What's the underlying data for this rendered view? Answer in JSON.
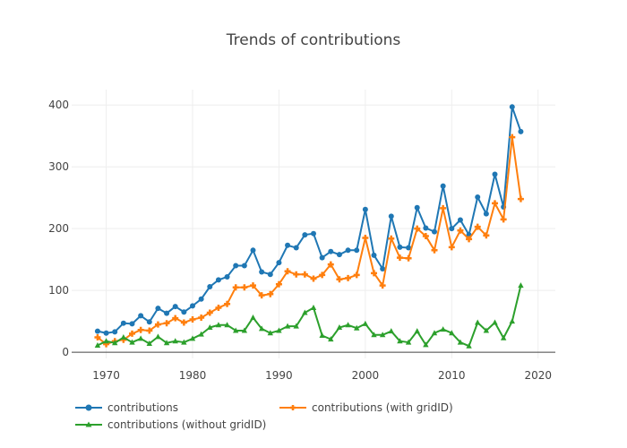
{
  "chart_data": {
    "type": "line",
    "title": "Trends of contributions",
    "xlabel": "",
    "ylabel": "",
    "xlim": [
      1966,
      2022
    ],
    "ylim": [
      -10,
      425
    ],
    "x_ticks": [
      1970,
      1980,
      1990,
      2000,
      2010,
      2020
    ],
    "y_ticks": [
      0,
      100,
      200,
      300,
      400
    ],
    "grid": true,
    "legend_position": "bottom-left",
    "x": [
      1969,
      1970,
      1971,
      1972,
      1973,
      1974,
      1975,
      1976,
      1977,
      1978,
      1979,
      1980,
      1981,
      1982,
      1983,
      1984,
      1985,
      1986,
      1987,
      1988,
      1989,
      1990,
      1991,
      1992,
      1993,
      1994,
      1995,
      1996,
      1997,
      1998,
      1999,
      2000,
      2001,
      2002,
      2003,
      2004,
      2005,
      2006,
      2007,
      2008,
      2009,
      2010,
      2011,
      2012,
      2013,
      2014,
      2015,
      2016,
      2017,
      2018
    ],
    "series": [
      {
        "name": "contributions",
        "color": "#1f77b4",
        "marker": "circle",
        "values": [
          34,
          31,
          33,
          47,
          46,
          59,
          49,
          71,
          63,
          74,
          65,
          75,
          86,
          106,
          117,
          122,
          140,
          140,
          165,
          130,
          126,
          145,
          173,
          169,
          190,
          192,
          153,
          163,
          158,
          165,
          165,
          231,
          157,
          135,
          220,
          170,
          169,
          234,
          201,
          195,
          269,
          200,
          214,
          190,
          251,
          224,
          288,
          235,
          397,
          357
        ]
      },
      {
        "name": "contributions (with gridID)",
        "color": "#ff7f0e",
        "marker": "cross",
        "values": [
          24,
          13,
          18,
          20,
          30,
          36,
          35,
          45,
          47,
          55,
          48,
          53,
          56,
          64,
          72,
          78,
          105,
          105,
          108,
          92,
          94,
          110,
          131,
          126,
          126,
          119,
          125,
          142,
          118,
          120,
          125,
          185,
          128,
          108,
          184,
          153,
          152,
          200,
          188,
          165,
          233,
          170,
          197,
          183,
          203,
          189,
          241,
          215,
          348,
          248
        ]
      },
      {
        "name": "contributions (without gridID)",
        "color": "#2ca02c",
        "marker": "triangle",
        "values": [
          11,
          18,
          15,
          24,
          16,
          22,
          14,
          25,
          15,
          18,
          16,
          22,
          29,
          40,
          44,
          44,
          35,
          35,
          56,
          38,
          31,
          35,
          42,
          42,
          64,
          72,
          27,
          21,
          40,
          44,
          39,
          46,
          28,
          28,
          34,
          18,
          16,
          34,
          12,
          31,
          37,
          31,
          16,
          10,
          48,
          35,
          48,
          23,
          50,
          108
        ]
      }
    ]
  }
}
